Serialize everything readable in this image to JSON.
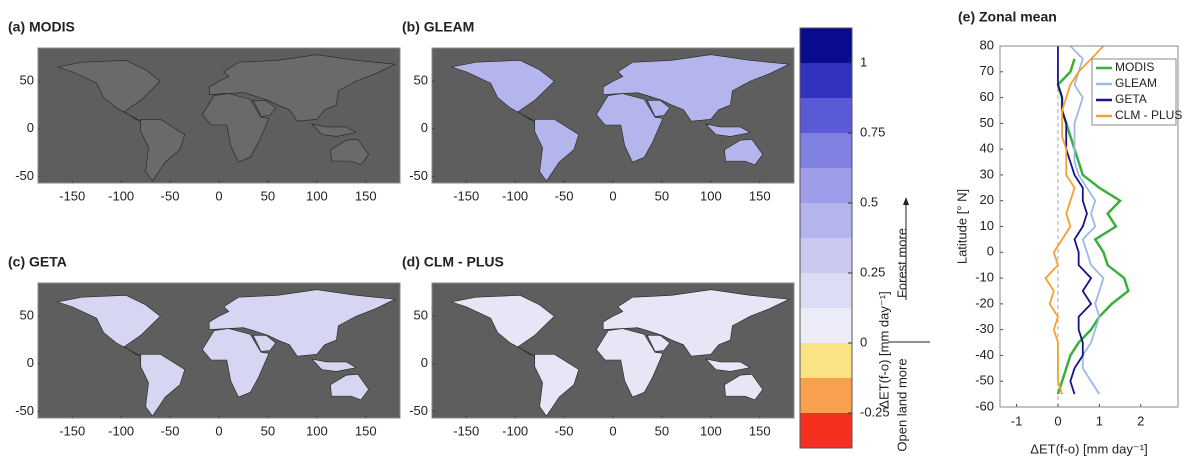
{
  "chart_data": [
    {
      "type": "map",
      "title": "(a)  MODIS",
      "xlim": [
        -185,
        185
      ],
      "ylim": [
        -57,
        85
      ],
      "xticks": [
        -150,
        -100,
        -50,
        0,
        50,
        100,
        150
      ],
      "yticks": [
        -50,
        0,
        50
      ]
    },
    {
      "type": "map",
      "title": "(b)  GLEAM",
      "xlim": [
        -185,
        185
      ],
      "ylim": [
        -57,
        85
      ],
      "xticks": [
        -150,
        -100,
        -50,
        0,
        50,
        100,
        150
      ],
      "yticks": [
        -50,
        0,
        50
      ]
    },
    {
      "type": "map",
      "title": "(c)  GETA",
      "xlim": [
        -185,
        185
      ],
      "ylim": [
        -57,
        85
      ],
      "xticks": [
        -150,
        -100,
        -50,
        0,
        50,
        100,
        150
      ],
      "yticks": [
        -50,
        0,
        50
      ]
    },
    {
      "type": "map",
      "title": "(d)  CLM - PLUS",
      "xlim": [
        -185,
        185
      ],
      "ylim": [
        -57,
        85
      ],
      "xticks": [
        -150,
        -100,
        -50,
        0,
        50,
        100,
        150
      ],
      "yticks": [
        -50,
        0,
        50
      ]
    },
    {
      "type": "colorbar",
      "label": "ΔET(f-o) [mm day⁻¹]",
      "annotations": [
        "Forest more",
        "Open land more"
      ],
      "levels": [
        -0.375,
        -0.25,
        -0.125,
        0,
        0.125,
        0.25,
        0.375,
        0.5,
        0.625,
        0.75,
        0.875,
        1,
        1.125
      ],
      "colors": [
        "#f5301e",
        "#f9a04f",
        "#fbe283",
        "#ececf9",
        "#dcdcf5",
        "#c9c9f1",
        "#b5b5ee",
        "#9d9de9",
        "#8080e0",
        "#5a5ad6",
        "#3232bf",
        "#0b0b8e"
      ],
      "ticks": [
        -0.25,
        0,
        0.25,
        0.5,
        0.75,
        1
      ]
    },
    {
      "type": "line",
      "title": "(e)  Zonal mean",
      "xlabel": "ΔET(f-o) [mm day⁻¹]",
      "ylabel": "Latitude [° N]",
      "y": [
        -55,
        -50,
        -45,
        -40,
        -35,
        -30,
        -25,
        -20,
        -15,
        -10,
        -5,
        0,
        5,
        10,
        15,
        20,
        25,
        30,
        35,
        40,
        45,
        50,
        55,
        60,
        65,
        70,
        75,
        80
      ],
      "xlim": [
        -1.4,
        2.9
      ],
      "xticks": [
        -1,
        0,
        1,
        2
      ],
      "ylim": [
        -60,
        80
      ],
      "yticks": [
        -60,
        -50,
        -40,
        -30,
        -20,
        -10,
        0,
        10,
        20,
        30,
        40,
        50,
        60,
        70,
        80
      ],
      "legend": "upper right",
      "series": [
        {
          "name": "MODIS",
          "color": "#3cae3c",
          "values": [
            0.0,
            0.1,
            0.2,
            0.3,
            0.5,
            0.8,
            1.0,
            1.3,
            1.7,
            1.6,
            1.2,
            1.1,
            0.9,
            1.4,
            1.2,
            1.5,
            1.0,
            0.6,
            0.5,
            0.4,
            0.3,
            0.2,
            0.1,
            0.1,
            0.0,
            0.3,
            0.4,
            null
          ]
        },
        {
          "name": "GLEAM",
          "color": "#9db8e8",
          "values": [
            1.0,
            0.8,
            0.6,
            0.6,
            0.8,
            0.9,
            1.0,
            0.9,
            1.0,
            1.1,
            0.8,
            0.7,
            0.6,
            0.9,
            0.8,
            0.9,
            0.7,
            0.5,
            0.4,
            0.4,
            0.4,
            0.4,
            0.5,
            0.6,
            0.4,
            0.5,
            0.6,
            0.3
          ]
        },
        {
          "name": "GETA",
          "color": "#14148c",
          "values": [
            0.4,
            0.3,
            0.4,
            0.6,
            0.6,
            0.5,
            0.5,
            0.8,
            0.6,
            0.8,
            0.5,
            0.5,
            0.4,
            0.6,
            0.7,
            0.6,
            0.6,
            0.4,
            0.3,
            0.2,
            0.2,
            0.2,
            0.1,
            0.1,
            0.0,
            0.0,
            0.0,
            0.0
          ]
        },
        {
          "name": "CLM - PLUS",
          "color": "#f5a030",
          "values": [
            0.1,
            0.0,
            0.0,
            0.0,
            0.0,
            -0.1,
            0.0,
            -0.2,
            -0.1,
            -0.3,
            0.0,
            -0.1,
            0.1,
            0.3,
            0.2,
            0.3,
            0.4,
            0.2,
            0.2,
            0.2,
            0.1,
            0.1,
            0.1,
            0.2,
            0.3,
            0.5,
            0.8,
            1.1
          ]
        }
      ]
    }
  ]
}
